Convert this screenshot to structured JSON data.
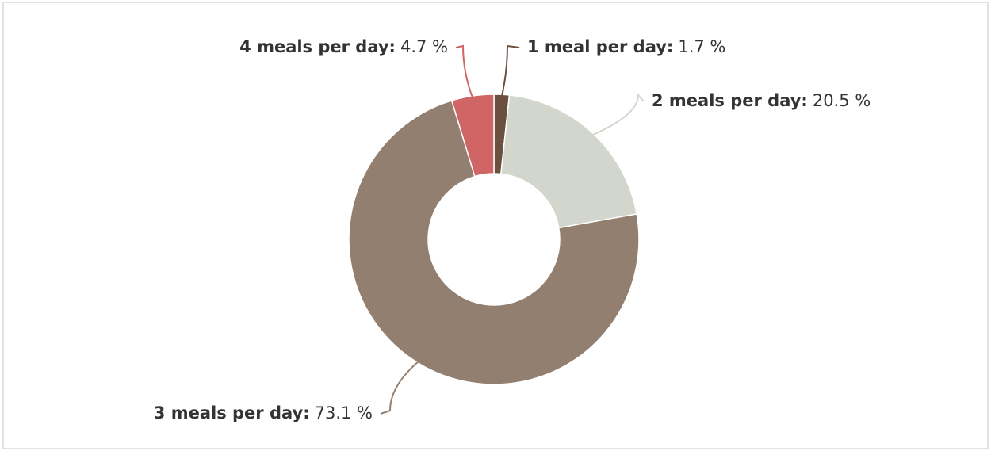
{
  "chart_data": {
    "type": "donut",
    "categories": [
      "1 meal per day:",
      "2 meals per day:",
      "3 meals per day:",
      "4 meals per day:"
    ],
    "values": [
      1.7,
      20.5,
      73.1,
      4.7
    ],
    "value_labels": [
      "1.7 %",
      "20.5 %",
      "73.1 %",
      "4.7 %"
    ],
    "colors": [
      "#6b4f3f",
      "#d3d6cc",
      "#927f70",
      "#d06565"
    ]
  }
}
